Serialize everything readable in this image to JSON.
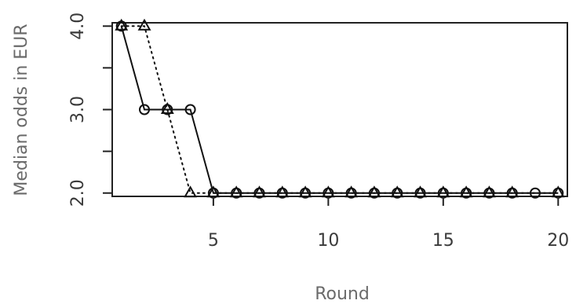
{
  "chart_data": {
    "type": "line",
    "title": "",
    "xlabel": "Round",
    "ylabel": "Median odds in EUR",
    "xlim": [
      0.6,
      20.4
    ],
    "ylim": [
      1.96,
      4.04
    ],
    "x_ticks": [
      5,
      10,
      15,
      20
    ],
    "x_tick_labels": [
      "5",
      "10",
      "15",
      "20"
    ],
    "y_ticks": [
      2.0,
      2.5,
      3.0,
      3.5,
      4.0
    ],
    "y_tick_labels": [
      "2.0",
      "",
      "3.0",
      "",
      "4.0"
    ],
    "grid": false,
    "legend": "none",
    "x": [
      1,
      2,
      3,
      4,
      5,
      6,
      7,
      8,
      9,
      10,
      11,
      12,
      13,
      14,
      15,
      16,
      17,
      18,
      19,
      20
    ],
    "series": [
      {
        "marker": "circle",
        "line": "solid",
        "color": "#111111",
        "values": [
          4.0,
          3.0,
          3.0,
          3.0,
          2.0,
          2.0,
          2.0,
          2.0,
          2.0,
          2.0,
          2.0,
          2.0,
          2.0,
          2.0,
          2.0,
          2.0,
          2.0,
          2.0,
          2.0,
          2.0
        ]
      },
      {
        "marker": "triangle",
        "line": "dotted",
        "color": "#111111",
        "values": [
          4.0,
          4.0,
          3.0,
          2.0,
          2.0,
          2.0,
          2.0,
          2.0,
          2.0,
          2.0,
          2.0,
          2.0,
          2.0,
          2.0,
          2.0,
          2.0,
          2.0,
          2.0,
          null,
          2.0
        ]
      }
    ]
  }
}
